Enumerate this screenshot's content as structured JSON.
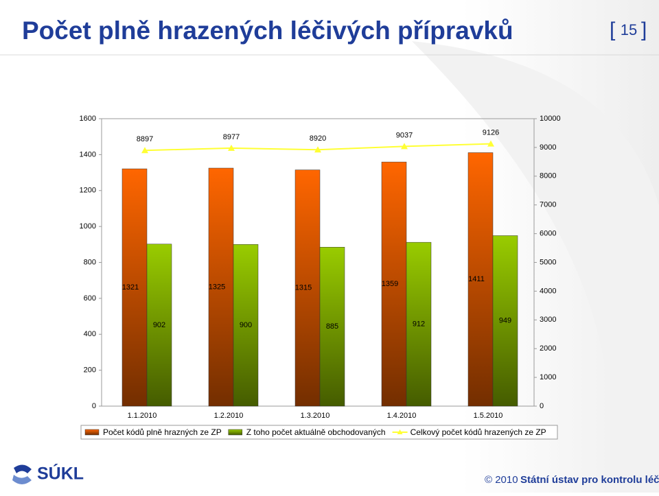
{
  "chart_data": {
    "type": "bar",
    "title": "Počet plně hrazených léčivých přípravků",
    "categories": [
      "1.1.2010",
      "1.2.2010",
      "1.3.2010",
      "1.4.2010",
      "1.5.2010"
    ],
    "series": [
      {
        "name": "Počet kódů plně hrazných ze ZP",
        "type": "bar",
        "color": "#ff6600",
        "values": [
          1321,
          1325,
          1315,
          1359,
          1411
        ]
      },
      {
        "name": "Z toho počet aktuálně obchodovaných",
        "type": "bar",
        "color": "#99cc00",
        "values": [
          902,
          900,
          885,
          912,
          949
        ]
      },
      {
        "name": "Celkový počet kódů hrazených ze ZP",
        "type": "line",
        "axis": "y2",
        "color": "#ffff33",
        "values": [
          8897,
          8977,
          8920,
          9037,
          9126
        ]
      }
    ],
    "ylim": [
      0,
      1600
    ],
    "yticks": [
      0,
      200,
      400,
      600,
      800,
      1000,
      1200,
      1400,
      1600
    ],
    "y2lim": [
      0,
      10000
    ],
    "y2ticks": [
      0,
      1000,
      2000,
      3000,
      4000,
      5000,
      6000,
      7000,
      8000,
      9000,
      10000
    ],
    "grid": false,
    "legend": "bottom"
  },
  "slide": {
    "page_number": "15",
    "logo": "SÚKL",
    "copyright": "© 2010",
    "institution": "Státní ústav pro kontrolu léčiv"
  }
}
